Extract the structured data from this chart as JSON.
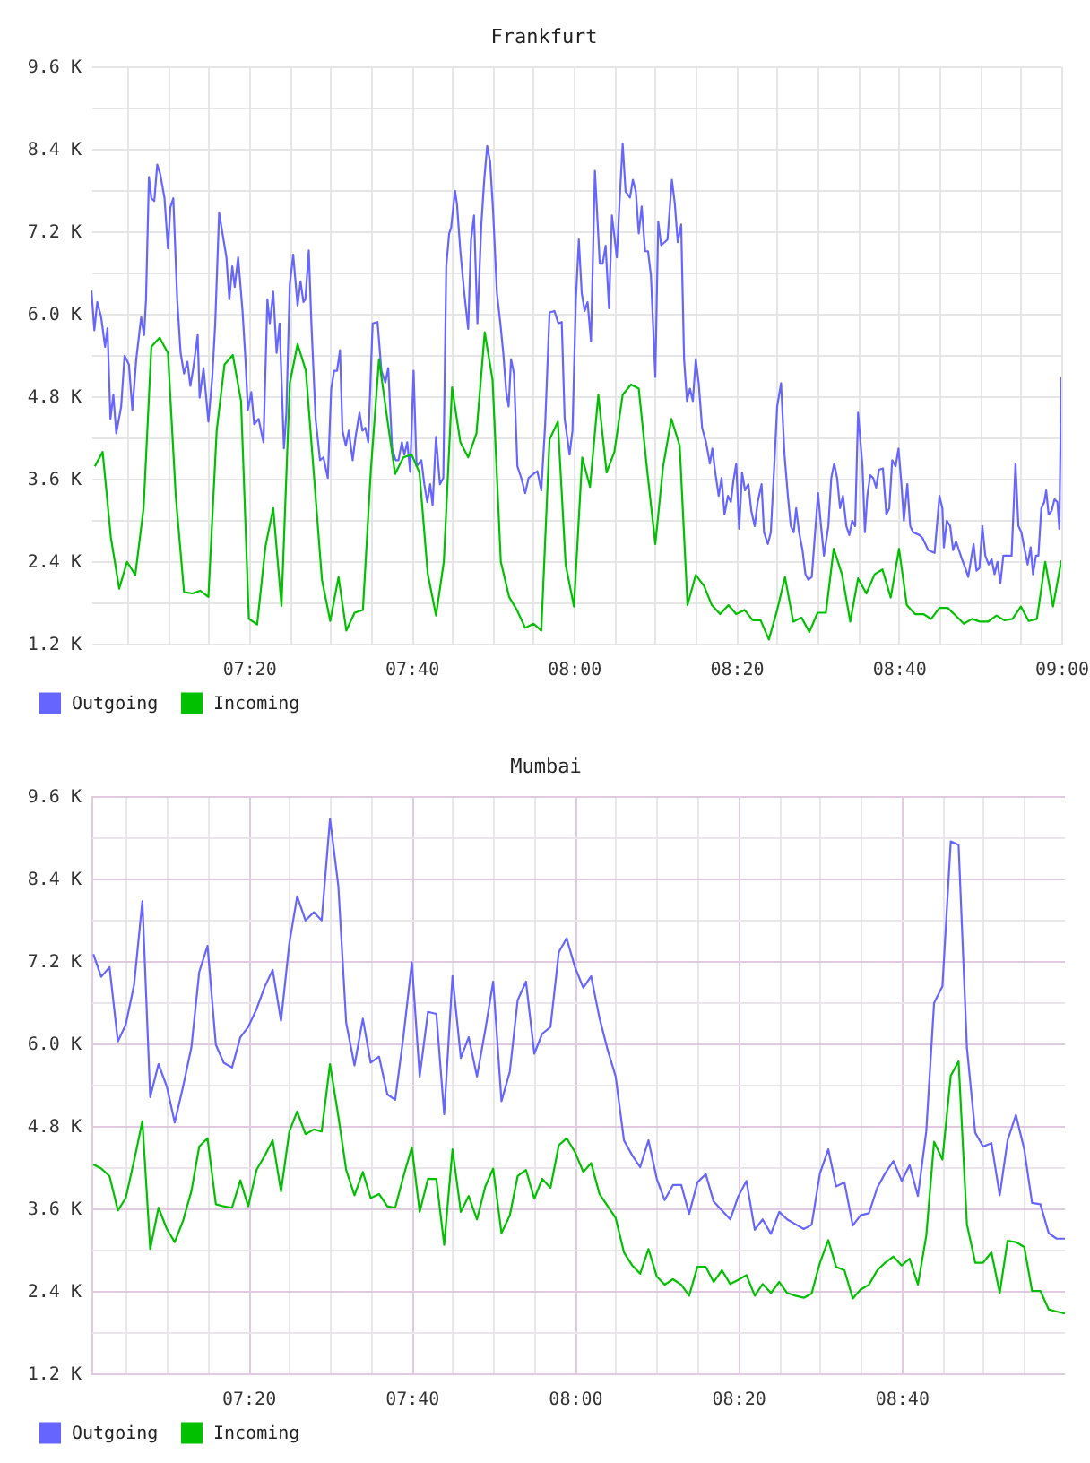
{
  "chart_data": [
    {
      "type": "line",
      "title": "Frankfurt",
      "legend": "bottom left",
      "grid": true,
      "xlim": [
        7.01,
        9.0
      ],
      "xticks": [
        {
          "value": 7.0833,
          "label": null
        },
        {
          "value": 7.1667,
          "label": null
        },
        {
          "value": 7.25,
          "label": null
        },
        {
          "value": 7.3333,
          "label": "07:20"
        },
        {
          "value": 7.4167,
          "label": null
        },
        {
          "value": 7.5,
          "label": null
        },
        {
          "value": 7.5833,
          "label": null
        },
        {
          "value": 7.6667,
          "label": "07:40"
        },
        {
          "value": 7.75,
          "label": null
        },
        {
          "value": 7.8333,
          "label": null
        },
        {
          "value": 7.9167,
          "label": null
        },
        {
          "value": 8,
          "label": "08:00"
        },
        {
          "value": 8.0833,
          "label": null
        },
        {
          "value": 8.1667,
          "label": null
        },
        {
          "value": 8.25,
          "label": null
        },
        {
          "value": 8.3333,
          "label": "08:20"
        },
        {
          "value": 8.4167,
          "label": null
        },
        {
          "value": 8.5,
          "label": null
        },
        {
          "value": 8.5833,
          "label": null
        },
        {
          "value": 8.6667,
          "label": "08:40"
        },
        {
          "value": 8.75,
          "label": null
        },
        {
          "value": 8.8333,
          "label": null
        },
        {
          "value": 8.9167,
          "label": null
        },
        {
          "value": 9,
          "label": "09:00"
        }
      ],
      "ylim": [
        1.2,
        9.6
      ],
      "yticks": [
        {
          "value": 1.2,
          "label": "1.2 K"
        },
        {
          "value": 1.8,
          "label": null
        },
        {
          "value": 2.4,
          "label": "2.4 K"
        },
        {
          "value": 3.0,
          "label": null
        },
        {
          "value": 3.6,
          "label": "3.6 K"
        },
        {
          "value": 4.2,
          "label": null
        },
        {
          "value": 4.8,
          "label": "4.8 K"
        },
        {
          "value": 5.4,
          "label": null
        },
        {
          "value": 6.0,
          "label": "6.0 K"
        },
        {
          "value": 6.6,
          "label": null
        },
        {
          "value": 7.2,
          "label": "7.2 K"
        },
        {
          "value": 7.8,
          "label": null
        },
        {
          "value": 8.4,
          "label": "8.4 K"
        },
        {
          "value": 9.0,
          "label": null
        },
        {
          "value": 9.6,
          "label": "9.6 K"
        }
      ],
      "x": [
        7.017,
        7.033,
        7.05,
        7.067,
        7.083,
        7.1,
        7.117,
        7.133,
        7.15,
        7.167,
        7.183,
        7.2,
        7.217,
        7.233,
        7.25,
        7.267,
        7.283,
        7.3,
        7.317,
        7.333,
        7.35,
        7.367,
        7.383,
        7.4,
        7.417,
        7.433,
        7.45,
        7.467,
        7.483,
        7.5,
        7.517,
        7.533,
        7.55,
        7.567,
        7.583,
        7.6,
        7.617,
        7.633,
        7.65,
        7.667,
        7.683,
        7.7,
        7.717,
        7.733,
        7.75,
        7.767,
        7.783,
        7.8,
        7.817,
        7.833,
        7.85,
        7.867,
        7.883,
        7.9,
        7.917,
        7.933,
        7.95,
        7.967,
        7.983,
        8,
        8.017,
        8.033,
        8.05,
        8.067,
        8.083,
        8.1,
        8.117,
        8.133,
        8.15,
        8.167,
        8.183,
        8.2,
        8.217,
        8.233,
        8.25,
        8.267,
        8.283,
        8.3,
        8.317,
        8.333,
        8.35,
        8.367,
        8.383,
        8.4,
        8.417,
        8.433,
        8.45,
        8.467,
        8.483,
        8.5,
        8.517,
        8.533,
        8.55,
        8.567,
        8.583,
        8.6,
        8.617,
        8.633,
        8.65,
        8.667,
        8.683,
        8.7,
        8.717,
        8.733,
        8.75,
        8.767,
        8.783,
        8.8,
        8.817,
        8.833,
        8.85,
        8.867,
        8.883,
        8.9,
        8.917,
        8.933,
        8.95,
        8.967,
        8.983,
        9
      ],
      "series": [
        {
          "name": "Outgoing",
          "color": "#6666ff",
          "x": [
            7.01,
            7.016,
            7.022,
            7.03,
            7.038,
            7.043,
            7.049,
            7.055,
            7.061,
            7.071,
            7.078,
            7.087,
            7.094,
            7.102,
            7.112,
            7.118,
            7.122,
            7.128,
            7.133,
            7.139,
            7.145,
            7.151,
            7.16,
            7.167,
            7.172,
            7.178,
            7.186,
            7.193,
            7.2,
            7.207,
            7.213,
            7.219,
            7.228,
            7.232,
            7.24,
            7.25,
            7.258,
            7.264,
            7.272,
            7.28,
            7.287,
            7.293,
            7.299,
            7.304,
            7.311,
            7.32,
            7.326,
            7.331,
            7.338,
            7.344,
            7.353,
            7.363,
            7.371,
            7.376,
            7.383,
            7.39,
            7.396,
            7.405,
            7.41,
            7.417,
            7.424,
            7.433,
            7.439,
            7.445,
            7.449,
            7.456,
            7.461,
            7.47,
            7.479,
            7.486,
            7.495,
            7.502,
            7.508,
            7.514,
            7.52,
            7.525,
            7.532,
            7.538,
            7.546,
            7.552,
            7.56,
            7.566,
            7.572,
            7.578,
            7.587,
            7.597,
            7.605,
            7.613,
            7.619,
            7.627,
            7.634,
            7.64,
            7.647,
            7.652,
            7.658,
            7.664,
            7.671,
            7.677,
            7.687,
            7.693,
            7.699,
            7.705,
            7.71,
            7.717,
            7.725,
            7.732,
            7.738,
            7.744,
            7.748,
            7.756,
            7.76,
            7.767,
            7.775,
            7.783,
            7.789,
            7.795,
            7.802,
            7.81,
            7.816,
            7.822,
            7.828,
            7.834,
            7.842,
            7.849,
            7.855,
            7.861,
            7.866,
            7.871,
            7.877,
            7.884,
            7.892,
            7.9,
            7.907,
            7.917,
            7.925,
            7.933,
            7.941,
            7.95,
            7.96,
            7.968,
            7.975,
            7.981,
            7.991,
            7.997,
            8.004,
            8.01,
            8.016,
            8.022,
            8.028,
            8.035,
            8.043,
            8.053,
            8.059,
            8.065,
            8.072,
            8.078,
            8.088,
            8.094,
            8.1,
            8.106,
            8.115,
            8.121,
            8.127,
            8.133,
            8.139,
            8.146,
            8.152,
            8.158,
            8.167,
            8.173,
            8.179,
            8.186,
            8.192,
            8.201,
            8.207,
            8.213,
            8.22,
            8.226,
            8.232,
            8.238,
            8.244,
            8.25,
            8.256,
            8.263,
            8.271,
            8.279,
            8.284,
            8.29,
            8.297,
            8.303,
            8.309,
            8.316,
            8.322,
            8.327,
            8.333,
            8.339,
            8.345,
            8.351,
            8.358,
            8.364,
            8.371,
            8.377,
            8.385,
            8.39,
            8.398,
            8.404,
            8.411,
            8.417,
            8.425,
            8.432,
            8.439,
            8.445,
            8.451,
            8.456,
            8.462,
            8.469,
            8.475,
            8.481,
            8.488,
            8.494,
            8.501,
            8.507,
            8.513,
            8.522,
            8.528,
            8.534,
            8.54,
            8.546,
            8.552,
            8.559,
            8.565,
            8.571,
            8.577,
            8.583,
            8.592,
            8.597,
            8.602,
            8.608,
            8.614,
            8.62,
            8.626,
            8.634,
            8.641,
            8.647,
            8.653,
            8.66,
            8.666,
            8.672,
            8.677,
            8.684,
            8.69,
            8.696,
            8.709,
            8.715,
            8.721,
            8.727,
            8.74,
            8.75,
            8.756,
            8.759,
            8.765,
            8.772,
            8.778,
            8.784,
            8.79,
            8.796,
            8.803,
            8.809,
            8.814,
            8.82,
            8.826,
            8.832,
            8.838,
            8.844,
            8.851,
            8.857,
            8.863,
            8.869,
            8.875,
            8.881,
            8.898,
            8.906,
            8.912,
            8.918,
            8.925,
            8.931,
            8.937,
            8.942,
            8.948,
            8.953,
            8.959,
            8.965,
            8.969,
            8.974,
            8.98,
            8.986,
            8.992,
            8.996,
            9
          ],
          "values": [
            6.34,
            5.76,
            6.17,
            5.95,
            5.52,
            5.79,
            4.47,
            4.82,
            4.26,
            4.65,
            5.39,
            5.26,
            4.6,
            5.34,
            5.95,
            5.69,
            6.21,
            7.99,
            7.68,
            7.64,
            8.17,
            8.04,
            7.68,
            6.95,
            7.55,
            7.68,
            6.21,
            5.43,
            5.13,
            5.3,
            4.95,
            5.21,
            5.69,
            4.78,
            5.21,
            4.43,
            5.08,
            5.86,
            7.47,
            7.12,
            6.82,
            6.21,
            6.69,
            6.39,
            6.82,
            6.04,
            5.34,
            4.6,
            4.86,
            4.39,
            4.47,
            4.13,
            6.21,
            5.86,
            6.32,
            5.43,
            5.86,
            4.04,
            4.56,
            6.43,
            6.86,
            6.12,
            6.47,
            6.17,
            6.21,
            6.92,
            5.91,
            4.47,
            3.87,
            3.91,
            3.61,
            4.91,
            5.17,
            5.17,
            5.47,
            4.3,
            4.08,
            4.3,
            3.87,
            4.21,
            4.56,
            4.3,
            4.34,
            4.13,
            5.86,
            5.88,
            5.17,
            5.0,
            5.21,
            4.04,
            3.87,
            3.87,
            4.13,
            3.95,
            4.13,
            3.7,
            5.17,
            3.78,
            3.87,
            3.52,
            3.26,
            3.52,
            3.21,
            4.21,
            3.52,
            3.61,
            6.69,
            7.17,
            7.25,
            7.79,
            7.6,
            6.91,
            6.3,
            5.78,
            7.08,
            7.43,
            5.86,
            7.3,
            7.95,
            8.44,
            8.21,
            7.51,
            6.3,
            5.86,
            5.43,
            4.87,
            4.65,
            5.34,
            5.13,
            3.78,
            3.61,
            3.39,
            3.61,
            3.67,
            3.71,
            3.43,
            4.39,
            6.02,
            6.04,
            5.86,
            5.88,
            4.47,
            3.95,
            4.3,
            6.21,
            7.08,
            6.3,
            6.04,
            6.17,
            5.6,
            8.08,
            6.73,
            6.73,
            6.99,
            6.08,
            7.43,
            6.82,
            7.69,
            8.47,
            7.78,
            7.69,
            7.95,
            7.78,
            7.17,
            7.56,
            6.91,
            6.91,
            6.56,
            5.08,
            7.34,
            7.0,
            7.04,
            7.08,
            7.95,
            7.6,
            7.04,
            7.3,
            5.34,
            4.73,
            4.91,
            4.73,
            5.34,
            4.99,
            4.34,
            4.13,
            3.82,
            4.04,
            3.69,
            3.35,
            3.61,
            3.08,
            3.35,
            3.26,
            3.56,
            3.82,
            2.87,
            3.69,
            3.43,
            3.52,
            3.13,
            2.91,
            3.26,
            3.52,
            2.82,
            2.65,
            2.82,
            3.78,
            4.65,
            4.99,
            3.95,
            3.35,
            2.91,
            2.82,
            3.17,
            2.82,
            2.56,
            2.21,
            2.13,
            2.17,
            2.74,
            3.39,
            2.91,
            2.48,
            2.91,
            3.61,
            3.82,
            3.61,
            3.17,
            3.35,
            2.91,
            2.78,
            2.99,
            2.91,
            4.56,
            3.78,
            2.82,
            3.35,
            3.65,
            3.61,
            3.47,
            3.73,
            3.75,
            3.08,
            3.17,
            3.87,
            3.78,
            4.04,
            3.52,
            2.99,
            3.52,
            2.91,
            2.82,
            2.78,
            2.74,
            2.65,
            2.56,
            2.52,
            3.35,
            3.17,
            2.6,
            2.99,
            2.91,
            2.56,
            2.69,
            2.56,
            2.43,
            2.3,
            2.17,
            2.39,
            2.65,
            2.26,
            2.3,
            2.91,
            2.48,
            2.35,
            2.43,
            2.21,
            2.39,
            2.08,
            2.48,
            2.48,
            3.82,
            2.91,
            2.82,
            2.56,
            2.35,
            2.6,
            2.21,
            2.48,
            2.48,
            3.17,
            3.26,
            3.43,
            3.08,
            3.13,
            3.3,
            3.26,
            2.87,
            5.08
          ]
        },
        {
          "name": "Incoming",
          "color": "#00c000",
          "values": [
            3.78,
            3.99,
            2.74,
            2.0,
            2.39,
            2.2,
            3.17,
            5.52,
            5.65,
            5.43,
            3.35,
            1.95,
            1.93,
            1.97,
            1.88,
            4.3,
            5.26,
            5.4,
            4.73,
            1.56,
            1.48,
            2.61,
            3.17,
            1.75,
            4.99,
            5.56,
            5.17,
            3.61,
            2.13,
            1.53,
            2.17,
            1.39,
            1.65,
            1.69,
            3.69,
            5.34,
            4.47,
            3.67,
            3.91,
            3.95,
            3.69,
            2.22,
            1.61,
            2.39,
            4.93,
            4.13,
            3.91,
            4.26,
            5.73,
            5.04,
            2.39,
            1.88,
            1.69,
            1.43,
            1.49,
            1.39,
            4.17,
            4.43,
            2.35,
            1.74,
            3.91,
            3.48,
            4.82,
            3.69,
            3.99,
            4.82,
            4.97,
            4.91,
            3.74,
            2.65,
            3.78,
            4.47,
            4.08,
            1.76,
            2.2,
            2.04,
            1.76,
            1.63,
            1.76,
            1.63,
            1.69,
            1.54,
            1.54,
            1.26,
            1.69,
            2.17,
            1.52,
            1.58,
            1.37,
            1.65,
            1.65,
            2.58,
            2.21,
            1.52,
            2.15,
            1.93,
            2.21,
            2.28,
            1.87,
            2.58,
            1.76,
            1.63,
            1.63,
            1.56,
            1.72,
            1.72,
            1.61,
            1.49,
            1.56,
            1.52,
            1.52,
            1.61,
            1.54,
            1.56,
            1.74,
            1.53,
            1.56,
            2.39,
            1.74,
            2.41
          ]
        }
      ]
    },
    {
      "type": "line",
      "title": "Mumbai",
      "legend": "bottom left",
      "grid": true,
      "xlim": [
        7.013,
        9.0
      ],
      "xticks": [
        {
          "value": 7.0833,
          "label": null
        },
        {
          "value": 7.1667,
          "label": null
        },
        {
          "value": 7.25,
          "label": null
        },
        {
          "value": 7.3333,
          "label": "07:20"
        },
        {
          "value": 7.4167,
          "label": null
        },
        {
          "value": 7.5,
          "label": null
        },
        {
          "value": 7.5833,
          "label": null
        },
        {
          "value": 7.6667,
          "label": "07:40"
        },
        {
          "value": 7.75,
          "label": null
        },
        {
          "value": 7.8333,
          "label": null
        },
        {
          "value": 7.9167,
          "label": null
        },
        {
          "value": 8,
          "label": "08:00"
        },
        {
          "value": 8.0833,
          "label": null
        },
        {
          "value": 8.1667,
          "label": null
        },
        {
          "value": 8.25,
          "label": null
        },
        {
          "value": 8.3333,
          "label": "08:20"
        },
        {
          "value": 8.4167,
          "label": null
        },
        {
          "value": 8.5,
          "label": null
        },
        {
          "value": 8.5833,
          "label": null
        },
        {
          "value": 8.6667,
          "label": "08:40"
        },
        {
          "value": 8.75,
          "label": null
        },
        {
          "value": 8.8333,
          "label": null
        },
        {
          "value": 8.9167,
          "label": null
        }
      ],
      "ylim": [
        1.2,
        9.6
      ],
      "yticks": [
        {
          "value": 1.2,
          "label": "1.2 K"
        },
        {
          "value": 1.8,
          "label": null
        },
        {
          "value": 2.4,
          "label": "2.4 K"
        },
        {
          "value": 3.0,
          "label": null
        },
        {
          "value": 3.6,
          "label": "3.6 K"
        },
        {
          "value": 4.2,
          "label": null
        },
        {
          "value": 4.8,
          "label": "4.8 K"
        },
        {
          "value": 5.4,
          "label": null
        },
        {
          "value": 6.0,
          "label": "6.0 K"
        },
        {
          "value": 6.6,
          "label": null
        },
        {
          "value": 7.2,
          "label": "7.2 K"
        },
        {
          "value": 7.8,
          "label": null
        },
        {
          "value": 8.4,
          "label": "8.4 K"
        },
        {
          "value": 9.0,
          "label": null
        },
        {
          "value": 9.6,
          "label": "9.6 K"
        }
      ],
      "x": [
        7.017,
        7.033,
        7.05,
        7.067,
        7.083,
        7.1,
        7.117,
        7.133,
        7.15,
        7.167,
        7.183,
        7.2,
        7.217,
        7.233,
        7.25,
        7.267,
        7.283,
        7.3,
        7.317,
        7.333,
        7.35,
        7.367,
        7.383,
        7.4,
        7.417,
        7.433,
        7.45,
        7.467,
        7.483,
        7.5,
        7.517,
        7.533,
        7.55,
        7.567,
        7.583,
        7.6,
        7.617,
        7.633,
        7.65,
        7.667,
        7.683,
        7.7,
        7.717,
        7.733,
        7.75,
        7.767,
        7.783,
        7.8,
        7.817,
        7.833,
        7.85,
        7.867,
        7.883,
        7.9,
        7.917,
        7.933,
        7.95,
        7.967,
        7.983,
        8,
        8.017,
        8.033,
        8.05,
        8.067,
        8.083,
        8.1,
        8.117,
        8.133,
        8.15,
        8.167,
        8.183,
        8.2,
        8.217,
        8.233,
        8.25,
        8.267,
        8.283,
        8.3,
        8.317,
        8.333,
        8.35,
        8.367,
        8.383,
        8.4,
        8.417,
        8.433,
        8.45,
        8.467,
        8.483,
        8.5,
        8.517,
        8.533,
        8.55,
        8.567,
        8.583,
        8.6,
        8.617,
        8.633,
        8.65,
        8.667,
        8.683,
        8.7,
        8.717,
        8.733,
        8.75,
        8.767,
        8.783,
        8.8,
        8.817,
        8.833,
        8.85,
        8.867,
        8.883,
        8.9,
        8.917,
        8.933,
        8.95,
        8.967,
        8.983,
        9
      ],
      "series": [
        {
          "name": "Outgoing",
          "color": "#6666ff",
          "values": [
            7.3,
            6.97,
            7.11,
            6.03,
            6.27,
            6.85,
            8.07,
            5.22,
            5.7,
            5.37,
            4.85,
            5.37,
            5.94,
            7.04,
            7.42,
            5.98,
            5.72,
            5.65,
            6.09,
            6.24,
            6.5,
            6.83,
            7.07,
            6.33,
            7.46,
            8.14,
            7.79,
            7.91,
            7.79,
            9.27,
            8.29,
            6.3,
            5.68,
            6.36,
            5.72,
            5.81,
            5.26,
            5.18,
            6.11,
            7.18,
            5.52,
            6.46,
            6.43,
            4.97,
            6.98,
            5.79,
            6.09,
            5.52,
            6.2,
            6.9,
            5.16,
            5.59,
            6.63,
            6.9,
            5.85,
            6.14,
            6.24,
            7.33,
            7.53,
            7.11,
            6.81,
            6.98,
            6.37,
            5.9,
            5.52,
            4.59,
            4.37,
            4.2,
            4.59,
            4.03,
            3.72,
            3.94,
            3.94,
            3.52,
            3.98,
            4.1,
            3.7,
            3.57,
            3.44,
            3.77,
            4.0,
            3.29,
            3.44,
            3.23,
            3.55,
            3.44,
            3.37,
            3.3,
            3.36,
            4.11,
            4.46,
            3.92,
            3.98,
            3.35,
            3.5,
            3.53,
            3.9,
            4.11,
            4.29,
            4.0,
            4.23,
            3.78,
            4.72,
            6.59,
            6.83,
            8.94,
            8.89,
            5.94,
            4.7,
            4.5,
            4.55,
            3.79,
            4.59,
            4.96,
            4.46,
            3.68,
            3.66,
            3.24,
            3.16,
            3.16
          ]
        },
        {
          "name": "Incoming",
          "color": "#00c000",
          "values": [
            4.24,
            4.18,
            4.07,
            3.57,
            3.75,
            4.29,
            4.87,
            3.01,
            3.61,
            3.3,
            3.11,
            3.42,
            3.85,
            4.5,
            4.62,
            3.66,
            3.63,
            3.61,
            4.01,
            3.63,
            4.16,
            4.37,
            4.59,
            3.85,
            4.72,
            5.01,
            4.68,
            4.75,
            4.72,
            5.7,
            4.94,
            4.16,
            3.79,
            4.13,
            3.75,
            3.81,
            3.63,
            3.61,
            4.07,
            4.49,
            3.55,
            4.03,
            4.03,
            3.07,
            4.46,
            3.55,
            3.78,
            3.44,
            3.92,
            4.18,
            3.24,
            3.5,
            4.07,
            4.16,
            3.74,
            4.03,
            3.9,
            4.52,
            4.62,
            4.42,
            4.13,
            4.26,
            3.81,
            3.63,
            3.46,
            2.96,
            2.77,
            2.65,
            3.01,
            2.61,
            2.49,
            2.57,
            2.49,
            2.33,
            2.75,
            2.75,
            2.53,
            2.7,
            2.5,
            2.56,
            2.63,
            2.33,
            2.5,
            2.37,
            2.53,
            2.37,
            2.33,
            2.3,
            2.36,
            2.81,
            3.14,
            2.75,
            2.7,
            2.29,
            2.42,
            2.49,
            2.7,
            2.81,
            2.9,
            2.77,
            2.87,
            2.49,
            3.2,
            4.57,
            4.31,
            5.53,
            5.74,
            3.37,
            2.81,
            2.81,
            2.96,
            2.37,
            3.13,
            3.11,
            3.04,
            2.4,
            2.4,
            2.13,
            2.1,
            2.07
          ]
        }
      ]
    }
  ]
}
